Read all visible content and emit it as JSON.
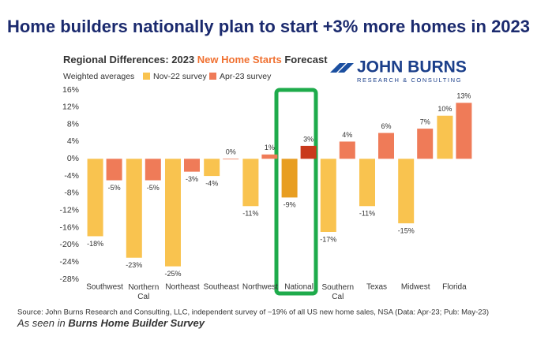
{
  "headline": "Home builders nationally plan to start +3% more homes in 2023",
  "logo": {
    "name": "JOHN BURNS",
    "tagline": "RESEARCH & CONSULTING"
  },
  "chart_data": {
    "type": "bar",
    "title_parts": [
      "Regional Differences: 2023 ",
      "New Home Starts",
      " Forecast"
    ],
    "subtitle": "Weighted averages",
    "categories": [
      "Southwest",
      "Northern Cal",
      "Northeast",
      "Southeast",
      "Northwest",
      "National",
      "Southern Cal",
      "Texas",
      "Midwest",
      "Florida"
    ],
    "highlight_index": 5,
    "series": [
      {
        "name": "Nov-22 survey",
        "color": "#f9c34f",
        "highlight_color": "#e89e22",
        "values": [
          -18,
          -23,
          -25,
          -4,
          -11,
          -9,
          -17,
          -11,
          -15,
          10
        ],
        "value_labels": [
          "-18%",
          "-23%",
          "-25%",
          "-4%",
          "-11%",
          "-9%",
          "-17%",
          "-11%",
          "-15%",
          "10%"
        ]
      },
      {
        "name": "Apr-23 survey",
        "color": "#ef7b58",
        "highlight_color": "#c9391b",
        "values": [
          -5,
          -5,
          -3,
          0,
          1,
          3,
          4,
          6,
          7,
          13
        ],
        "value_labels": [
          "-5%",
          "-5%",
          "-3%",
          "0%",
          "1%",
          "3%",
          "4%",
          "6%",
          "7%",
          "13%"
        ]
      }
    ],
    "ylim": [
      -28,
      16
    ],
    "yticks": [
      {
        "value": -28,
        "label": "-28%"
      },
      {
        "value": -24,
        "label": "-24%"
      },
      {
        "value": -20,
        "label": "-20%"
      },
      {
        "value": -16,
        "label": "-16%"
      },
      {
        "value": -12,
        "label": "-12%"
      },
      {
        "value": -8,
        "label": "-8%"
      },
      {
        "value": -4,
        "label": "-4%"
      },
      {
        "value": 0,
        "label": "0%"
      },
      {
        "value": 4,
        "label": "4%"
      },
      {
        "value": 8,
        "label": "8%"
      },
      {
        "value": 12,
        "label": "12%"
      },
      {
        "value": 16,
        "label": "16%"
      }
    ],
    "grid": false
  },
  "source": "Source: John Burns Research and Consulting, LLC, independent survey of ~19% of all US new home sales, NSA (Data: Apr-23; Pub: May-23)",
  "seen_in": [
    "As seen in ",
    "Burns Home Builder Survey"
  ]
}
